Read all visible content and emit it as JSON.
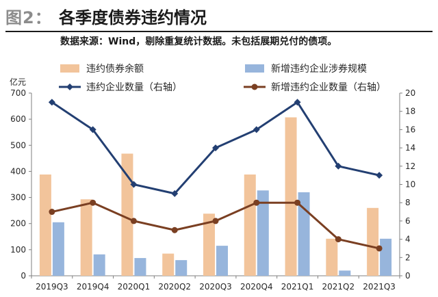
{
  "header": {
    "figure_label": "图2：",
    "title": "各季度债券违约情况",
    "source_note": "数据来源：Wind，剔除重复统计数据。未包括展期兑付的债项。"
  },
  "chart_data": {
    "type": "bar",
    "categories": [
      "2019Q3",
      "2019Q4",
      "2020Q1",
      "2020Q2",
      "2020Q3",
      "2020Q4",
      "2021Q1",
      "2021Q2",
      "2021Q3"
    ],
    "ylabel": "亿元",
    "ylim": [
      0,
      700
    ],
    "yticks": [
      0,
      100,
      200,
      300,
      400,
      500,
      600,
      700
    ],
    "y2lim": [
      0,
      20
    ],
    "y2ticks": [
      0,
      2,
      4,
      6,
      8,
      10,
      12,
      14,
      16,
      18,
      20
    ],
    "grid": false,
    "legend_position": "top",
    "series": [
      {
        "name": "违约债券余额",
        "kind": "bar",
        "axis": "left",
        "color": "#f2c49b",
        "values": [
          388,
          293,
          468,
          85,
          238,
          388,
          607,
          142,
          260
        ]
      },
      {
        "name": "新增违约企业涉券规模",
        "kind": "bar",
        "axis": "left",
        "color": "#97b5dc",
        "values": [
          205,
          82,
          68,
          60,
          115,
          327,
          320,
          20,
          142
        ]
      },
      {
        "name": "违约企业数量（右轴）",
        "kind": "line",
        "axis": "right",
        "color": "#233f72",
        "marker": "diamond",
        "values": [
          19,
          16,
          10,
          9,
          14,
          16,
          19,
          12,
          11
        ]
      },
      {
        "name": "新增违约企业数量（右轴）",
        "kind": "line",
        "axis": "right",
        "color": "#7a3f22",
        "marker": "circle",
        "values": [
          7,
          8,
          6,
          5,
          6,
          8,
          8,
          4,
          3
        ]
      }
    ]
  }
}
